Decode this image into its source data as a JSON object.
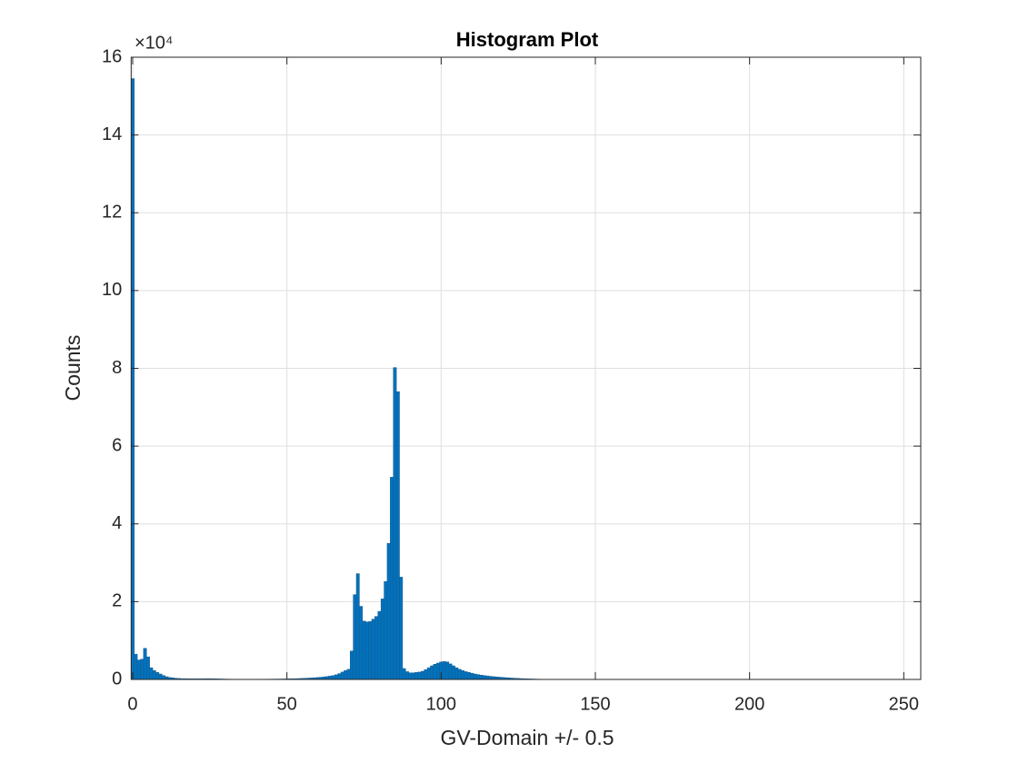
{
  "chart_data": {
    "type": "histogram",
    "title": "Histogram Plot",
    "x_label": "GV-Domain +/- 0.5",
    "y_label": "Counts",
    "y_exponent": "×10⁴",
    "color": "#0072BD",
    "edge_color": "#1d5a8c",
    "grid": true,
    "xlim": [
      -0.5,
      255.5
    ],
    "ylim": [
      0,
      160000
    ],
    "xticks": [
      0,
      50,
      100,
      150,
      200,
      250
    ],
    "yticks": [
      {
        "value": 0,
        "label": "0"
      },
      {
        "value": 20000,
        "label": "2"
      },
      {
        "value": 40000,
        "label": "4"
      },
      {
        "value": 60000,
        "label": "6"
      },
      {
        "value": 80000,
        "label": "8"
      },
      {
        "value": 100000,
        "label": "10"
      },
      {
        "value": 120000,
        "label": "12"
      },
      {
        "value": 140000,
        "label": "14"
      },
      {
        "value": 160000,
        "label": "16"
      }
    ],
    "bins": [
      -0.5,
      0.5,
      1.5,
      2.5,
      3.5,
      4.5,
      5.5,
      6.5,
      7.5,
      8.5,
      9.5,
      10.5,
      11.5,
      12.5,
      13.5,
      14.5,
      15.5,
      16.5,
      17.5,
      18.5,
      19.5,
      20.5,
      21.5,
      22.5,
      23.5,
      24.5,
      25.5,
      26.5,
      27.5,
      28.5,
      29.5,
      30.5,
      31.5,
      32.5,
      33.5,
      34.5,
      35.5,
      36.5,
      37.5,
      38.5,
      39.5,
      40.5,
      41.5,
      42.5,
      43.5,
      44.5,
      45.5,
      46.5,
      47.5,
      48.5,
      49.5,
      50.5,
      51.5,
      52.5,
      53.5,
      54.5,
      55.5,
      56.5,
      57.5,
      58.5,
      59.5,
      60.5,
      61.5,
      62.5,
      63.5,
      64.5,
      65.5,
      66.5,
      67.5,
      68.5,
      69.5,
      70.5,
      71.5,
      72.5,
      73.5,
      74.5,
      75.5,
      76.5,
      77.5,
      78.5,
      79.5,
      80.5,
      81.5,
      82.5,
      83.5,
      84.5,
      85.5,
      86.5,
      87.5,
      88.5,
      89.5,
      90.5,
      91.5,
      92.5,
      93.5,
      94.5,
      95.5,
      96.5,
      97.5,
      98.5,
      99.5,
      100.5,
      101.5,
      102.5,
      103.5,
      104.5,
      105.5,
      106.5,
      107.5,
      108.5,
      109.5,
      110.5,
      111.5,
      112.5,
      113.5,
      114.5,
      115.5,
      116.5,
      117.5,
      118.5,
      119.5,
      120.5,
      121.5,
      122.5,
      123.5,
      124.5,
      125.5,
      126.5,
      127.5,
      128.5,
      129.5,
      130.5,
      131.5,
      132.5,
      133.5,
      134.5,
      135.5,
      136.5,
      137.5,
      138.5,
      139.5,
      140.5,
      141.5,
      142.5,
      143.5,
      144.5,
      145.5,
      146.5,
      147.5,
      148.5,
      149.5,
      150.5,
      151.5,
      152.5,
      153.5,
      154.5,
      155.5,
      156.5,
      157.5,
      158.5,
      159.5,
      160.5,
      161.5,
      162.5,
      163.5,
      164.5,
      165.5,
      166.5,
      167.5,
      168.5,
      169.5,
      170.5,
      171.5,
      172.5,
      173.5,
      174.5,
      175.5,
      176.5,
      177.5,
      178.5,
      179.5,
      180.5,
      181.5,
      182.5,
      183.5,
      184.5,
      185.5,
      186.5,
      187.5,
      188.5,
      189.5,
      190.5,
      191.5,
      192.5,
      193.5,
      194.5,
      195.5,
      196.5,
      197.5,
      198.5,
      199.5,
      200.5,
      201.5,
      202.5,
      203.5,
      204.5,
      205.5,
      206.5,
      207.5,
      208.5,
      209.5,
      210.5,
      211.5,
      212.5,
      213.5,
      214.5,
      215.5,
      216.5,
      217.5,
      218.5,
      219.5,
      220.5,
      221.5,
      222.5,
      223.5,
      224.5,
      225.5,
      226.5,
      227.5,
      228.5,
      229.5,
      230.5,
      231.5,
      232.5,
      233.5,
      234.5,
      235.5,
      236.5,
      237.5,
      238.5,
      239.5,
      240.5,
      241.5,
      242.5,
      243.5,
      244.5,
      245.5,
      246.5,
      247.5,
      248.5,
      249.5,
      250.5,
      251.5,
      252.5,
      253.5,
      254.5,
      255.5
    ],
    "values": [
      154500,
      6500,
      5000,
      5200,
      8000,
      5800,
      3000,
      2300,
      1800,
      1400,
      1000,
      700,
      500,
      400,
      300,
      250,
      200,
      200,
      180,
      170,
      160,
      160,
      170,
      180,
      200,
      200,
      180,
      160,
      140,
      120,
      100,
      80,
      70,
      60,
      60,
      50,
      50,
      50,
      50,
      50,
      50,
      60,
      60,
      70,
      70,
      80,
      90,
      100,
      110,
      120,
      140,
      160,
      180,
      200,
      230,
      260,
      300,
      340,
      380,
      430,
      490,
      560,
      640,
      740,
      860,
      1000,
      1200,
      1500,
      1900,
      2300,
      2600,
      7300,
      21800,
      27200,
      18800,
      15000,
      14800,
      14900,
      15500,
      16200,
      17500,
      20700,
      25200,
      35000,
      52000,
      80200,
      74000,
      26300,
      2800,
      2000,
      1700,
      1700,
      1800,
      1900,
      2100,
      2500,
      3000,
      3500,
      3900,
      4200,
      4500,
      4600,
      4500,
      4000,
      3500,
      3000,
      2600,
      2300,
      2000,
      1800,
      1600,
      1400,
      1250,
      1100,
      1000,
      900,
      800,
      720,
      650,
      580,
      520,
      460,
      400,
      350,
      300,
      260,
      220,
      190,
      160,
      130,
      110,
      90,
      70,
      50,
      40,
      30,
      0,
      0,
      0,
      0,
      0,
      0,
      0,
      0,
      0,
      0,
      0,
      0,
      0,
      0,
      0,
      0,
      0,
      0,
      0,
      0,
      0,
      0,
      0,
      0,
      0,
      0,
      0,
      0,
      0,
      0,
      0,
      0,
      0,
      0,
      0,
      0,
      0,
      0,
      0,
      0,
      0,
      0,
      0,
      0,
      0,
      0,
      0,
      0,
      0,
      0,
      0,
      0,
      0,
      0,
      0,
      0,
      0,
      0,
      0,
      0,
      0,
      0,
      0,
      0,
      0,
      0,
      0,
      0,
      0,
      0,
      0,
      0,
      0,
      0,
      0,
      0,
      0,
      0,
      0,
      0,
      0,
      0,
      0,
      0,
      0,
      0,
      0,
      0,
      0,
      0,
      0,
      0,
      0,
      0,
      0,
      0,
      0,
      0,
      0,
      0,
      0,
      0,
      0,
      0,
      0,
      0,
      0,
      0,
      0,
      0,
      0,
      0,
      0,
      0,
      0,
      0,
      0,
      0,
      0,
      0
    ]
  }
}
